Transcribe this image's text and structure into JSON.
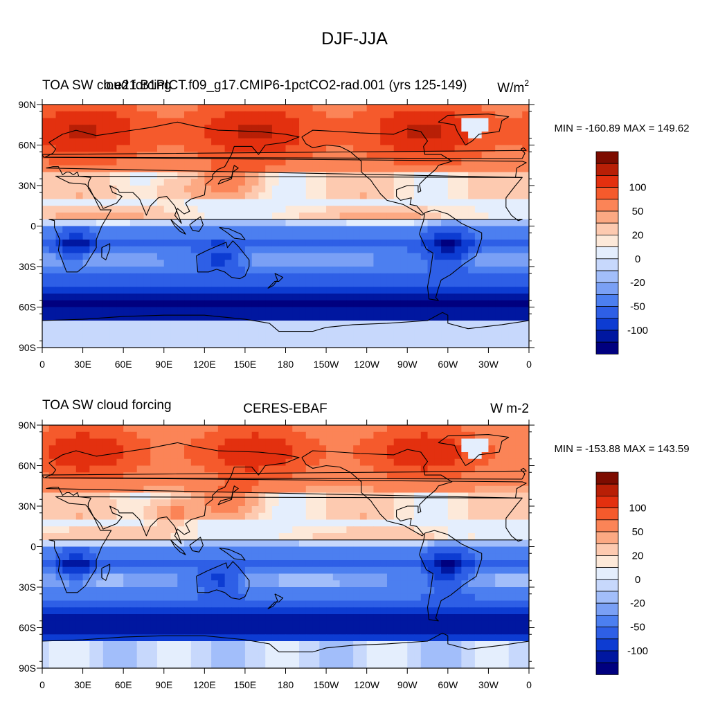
{
  "figure_title": "DJF-JJA",
  "panels": [
    {
      "left_title": "TOA SW cloud forcing",
      "center_title": "b.e21.B1PICT.f09_g17.CMIP6-1pctCO2-rad.001 (yrs 125-149)",
      "units_main": "W/m",
      "units_sup": "2",
      "stats": "MIN = -160.89 MAX = 149.62",
      "fields": {
        "north_boost": 45,
        "equator_boost": 18,
        "asia_boost": 18,
        "sh_depth": 1.0,
        "greenland": "light-interior",
        "antarctic": "light"
      }
    },
    {
      "left_title": "TOA SW cloud forcing",
      "center_title": "CERES-EBAF",
      "units_main": "W m-2",
      "units_sup": "",
      "stats": "MIN = -153.88 MAX = 143.59",
      "fields": {
        "north_boost": 35,
        "equator_boost": 10,
        "asia_boost": 40,
        "sh_depth": 0.9,
        "greenland": "very-light",
        "antarctic": "mixed"
      }
    }
  ],
  "lat_labels": [
    "90N",
    "60N",
    "30N",
    "0",
    "30S",
    "60S",
    "90S"
  ],
  "lon_labels": [
    "0",
    "30E",
    "60E",
    "90E",
    "120E",
    "150E",
    "180",
    "150W",
    "120W",
    "90W",
    "60W",
    "30W",
    "0"
  ],
  "colorbar": {
    "levels": [
      -150,
      -125,
      -100,
      -75,
      -50,
      -35,
      -20,
      -10,
      0,
      10,
      20,
      35,
      50,
      75,
      100,
      125,
      150
    ],
    "colors": [
      "#00007f",
      "#0017a0",
      "#0d3cd2",
      "#2e5fe6",
      "#4c7ff0",
      "#7aa0f5",
      "#a2befa",
      "#c7d8fc",
      "#e4eefd",
      "#fde9d9",
      "#fdcab0",
      "#fca983",
      "#fb8457",
      "#f55a2c",
      "#e3300f",
      "#b81f06",
      "#7d0c00"
    ],
    "labels": [
      {
        "text": "100",
        "boundary_index": 14
      },
      {
        "text": "50",
        "boundary_index": 12
      },
      {
        "text": "20",
        "boundary_index": 10
      },
      {
        "text": "0",
        "boundary_index": 8
      },
      {
        "text": "-20",
        "boundary_index": 6
      },
      {
        "text": "-50",
        "boundary_index": 4
      },
      {
        "text": "-100",
        "boundary_index": 2
      }
    ]
  }
}
